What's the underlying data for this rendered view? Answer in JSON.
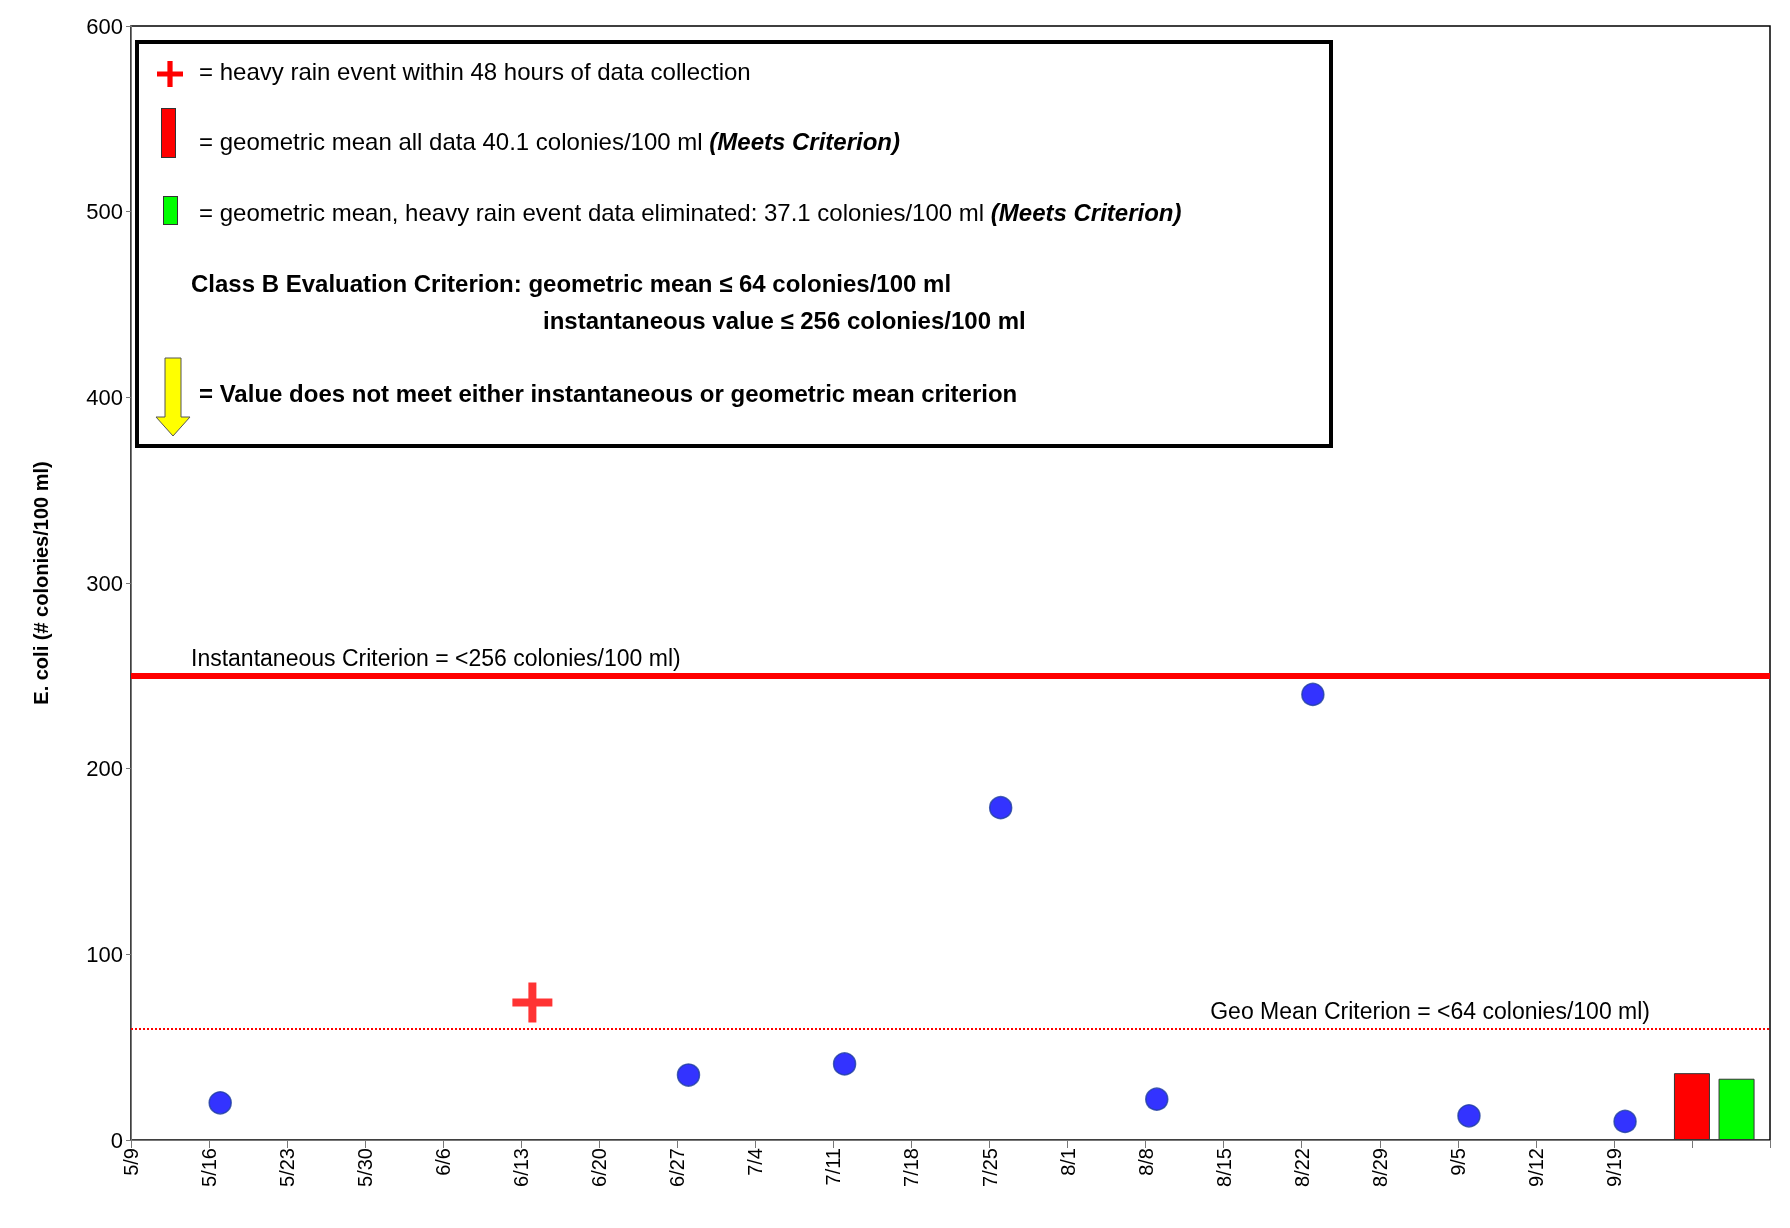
{
  "chart_data": {
    "type": "scatter",
    "ylabel": "E. coli (# colonies/100 ml)",
    "xlim": [
      "--05-09",
      "--10-03"
    ],
    "xticks": [
      {
        "value": "--05-09",
        "label": "5/9"
      },
      {
        "value": "--05-16",
        "label": "5/16"
      },
      {
        "value": "--05-23",
        "label": "5/23"
      },
      {
        "value": "--05-30",
        "label": "5/30"
      },
      {
        "value": "--06-06",
        "label": "6/6"
      },
      {
        "value": "--06-13",
        "label": "6/13"
      },
      {
        "value": "--06-20",
        "label": "6/20"
      },
      {
        "value": "--06-27",
        "label": "6/27"
      },
      {
        "value": "--07-04",
        "label": "7/4"
      },
      {
        "value": "--07-11",
        "label": "7/11"
      },
      {
        "value": "--07-18",
        "label": "7/18"
      },
      {
        "value": "--07-25",
        "label": "7/25"
      },
      {
        "value": "--08-01",
        "label": "8/1"
      },
      {
        "value": "--08-08",
        "label": "8/8"
      },
      {
        "value": "--08-15",
        "label": "8/15"
      },
      {
        "value": "--08-22",
        "label": "8/22"
      },
      {
        "value": "--08-29",
        "label": "8/29"
      },
      {
        "value": "--09-05",
        "label": "9/5"
      },
      {
        "value": "--09-12",
        "label": "9/12"
      },
      {
        "value": "--09-19",
        "label": "9/19"
      },
      {
        "value": "--09-26",
        "label": null
      },
      {
        "value": "--10-03",
        "label": null
      }
    ],
    "ylim": [
      0,
      600
    ],
    "yticks": [
      0,
      100,
      200,
      300,
      400,
      500,
      600
    ],
    "series": [
      {
        "color": "#0000ff",
        "marker": "circle",
        "x": [
          "--05-17",
          "--06-28",
          "--07-12",
          "--07-26",
          "--08-09",
          "--08-23",
          "--09-06",
          "--09-20"
        ],
        "values": [
          20,
          35,
          41,
          179,
          22,
          240,
          13,
          10
        ]
      },
      {
        "color": "#ff0000",
        "marker": "cross",
        "x": [
          "--06-14"
        ],
        "values": [
          74
        ]
      },
      {
        "type": "bar",
        "colors": [
          "#ff0000",
          "#00ff00"
        ],
        "x": [
          "--09-26",
          "--09-30"
        ],
        "values": [
          36,
          33
        ]
      }
    ],
    "ref_lines": [
      {
        "axis": "y",
        "value": 250,
        "label": "Instantaneous Criterion = <256 colonies/100 ml)",
        "color": "#ff0000",
        "line_style": "solid"
      },
      {
        "axis": "y",
        "value": 60,
        "label": "Geo Mean Criterion = <64 colonies/100 ml)",
        "color": "#ff0000",
        "line_style": "dotted"
      }
    ],
    "annotations": [
      "= heavy rain event within 48 hours of data collection",
      "= geometric mean all data 40.1 colonies/100 ml",
      "(Meets Criterion)",
      "= geometric mean, heavy rain event data eliminated: 37.1 colonies/100 ml",
      "(Meets Criterion)",
      "Class B Evaluation Criterion: geometric mean ≤ 64 colonies/100 ml",
      "instantaneous value ≤ 256 colonies/100 ml",
      "= Value does not meet either instantaneous or geometric mean criterion"
    ]
  }
}
